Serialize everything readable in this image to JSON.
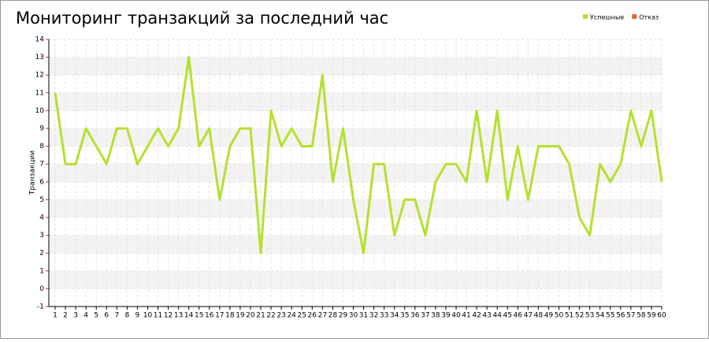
{
  "chart_data": {
    "type": "line",
    "title": "Мониторинг транзакций за последний час",
    "y_label": "Транзакции",
    "x": [
      1,
      2,
      3,
      4,
      5,
      6,
      7,
      8,
      9,
      10,
      11,
      12,
      13,
      14,
      15,
      16,
      17,
      18,
      19,
      20,
      21,
      22,
      23,
      24,
      25,
      26,
      27,
      28,
      29,
      30,
      31,
      32,
      33,
      34,
      35,
      36,
      37,
      38,
      39,
      40,
      41,
      42,
      43,
      44,
      45,
      46,
      47,
      48,
      49,
      50,
      51,
      52,
      53,
      54,
      55,
      56,
      57,
      58,
      59,
      60
    ],
    "xlim": [
      1,
      60
    ],
    "series": [
      {
        "name": "Успешные",
        "color": "#b5e02e",
        "values": [
          11,
          7,
          7,
          9,
          8,
          7,
          9,
          9,
          7,
          8,
          9,
          8,
          9,
          13,
          8,
          9,
          5,
          8,
          9,
          9,
          2,
          10,
          8,
          9,
          8,
          8,
          12,
          6,
          9,
          5,
          2,
          7,
          7,
          3,
          5,
          5,
          3,
          6,
          7,
          7,
          6,
          10,
          6,
          10,
          5,
          8,
          5,
          8,
          8,
          8,
          7,
          4,
          3,
          7,
          6,
          7,
          10,
          8,
          10,
          6
        ]
      },
      {
        "name": "Отказ",
        "color": "#e8673a",
        "values": [
          null,
          null,
          null,
          null,
          null,
          null,
          null,
          null,
          null,
          null,
          null,
          null,
          null,
          null,
          null,
          null,
          null,
          null,
          null,
          null,
          null,
          null,
          null,
          null,
          null,
          null,
          null,
          null,
          null,
          null,
          null,
          null,
          null,
          null,
          null,
          null,
          null,
          null,
          null,
          null,
          null,
          null,
          null,
          null,
          null,
          null,
          null,
          null,
          null,
          null,
          null,
          null,
          null,
          null,
          null,
          null,
          null,
          null,
          null,
          null
        ]
      }
    ],
    "ylim": [
      -1,
      14
    ],
    "yticks": [
      -1,
      0,
      1,
      2,
      3,
      4,
      5,
      6,
      7,
      8,
      9,
      10,
      11,
      12,
      13,
      14
    ],
    "grid": true,
    "legend": "top-right"
  }
}
